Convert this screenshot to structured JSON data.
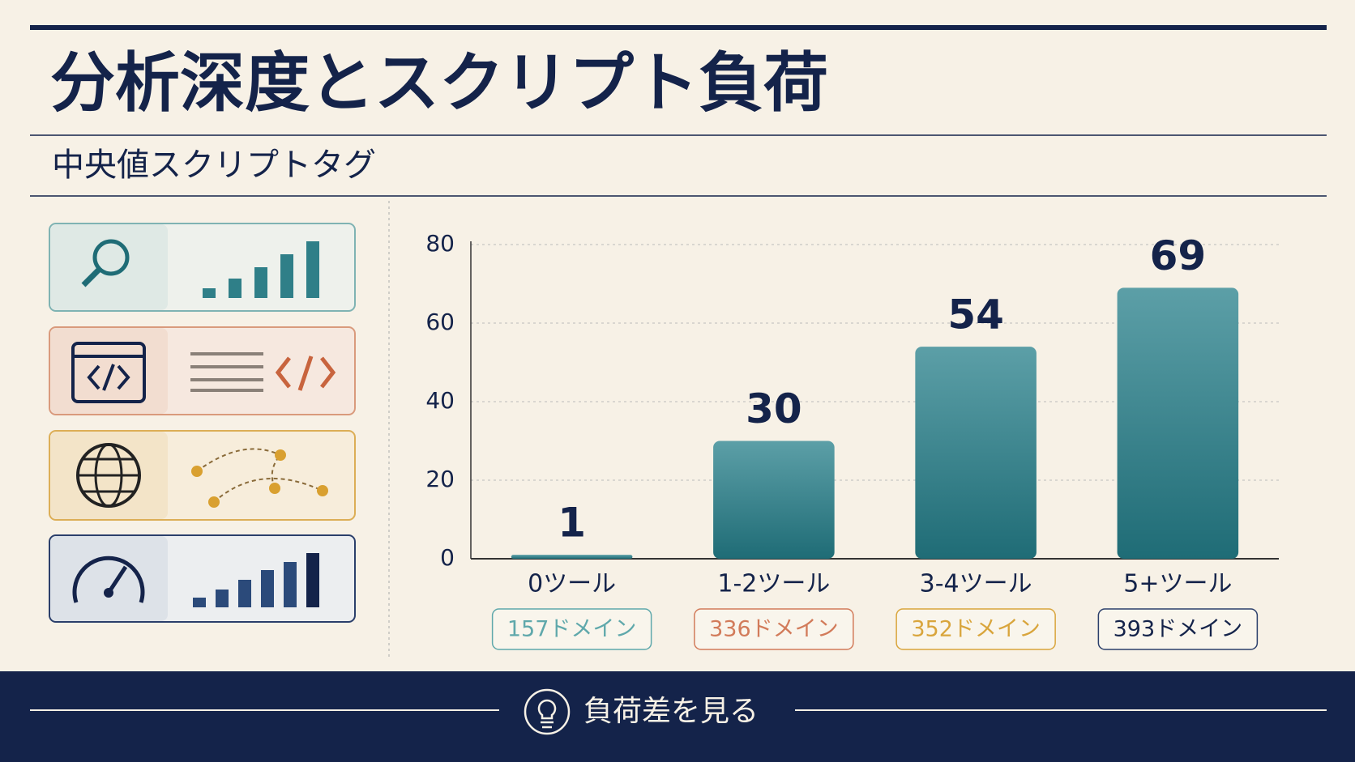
{
  "chart_data": {
    "type": "bar",
    "title": "分析深度とスクリプト負荷",
    "subtitle": "中央値スクリプトタグ",
    "categories": [
      "0ツール",
      "1-2ツール",
      "3-4ツール",
      "5+ツール"
    ],
    "category_notes": [
      "157ドメイン",
      "336ドメイン",
      "352ドメイン",
      "393ドメイン"
    ],
    "values": [
      1,
      30,
      54,
      69
    ],
    "color": "#2f7f88",
    "ylim": [
      0,
      80
    ],
    "yticks": [
      0,
      20,
      40,
      60,
      80
    ],
    "grid": true,
    "footer": "負荷差を見る"
  }
}
